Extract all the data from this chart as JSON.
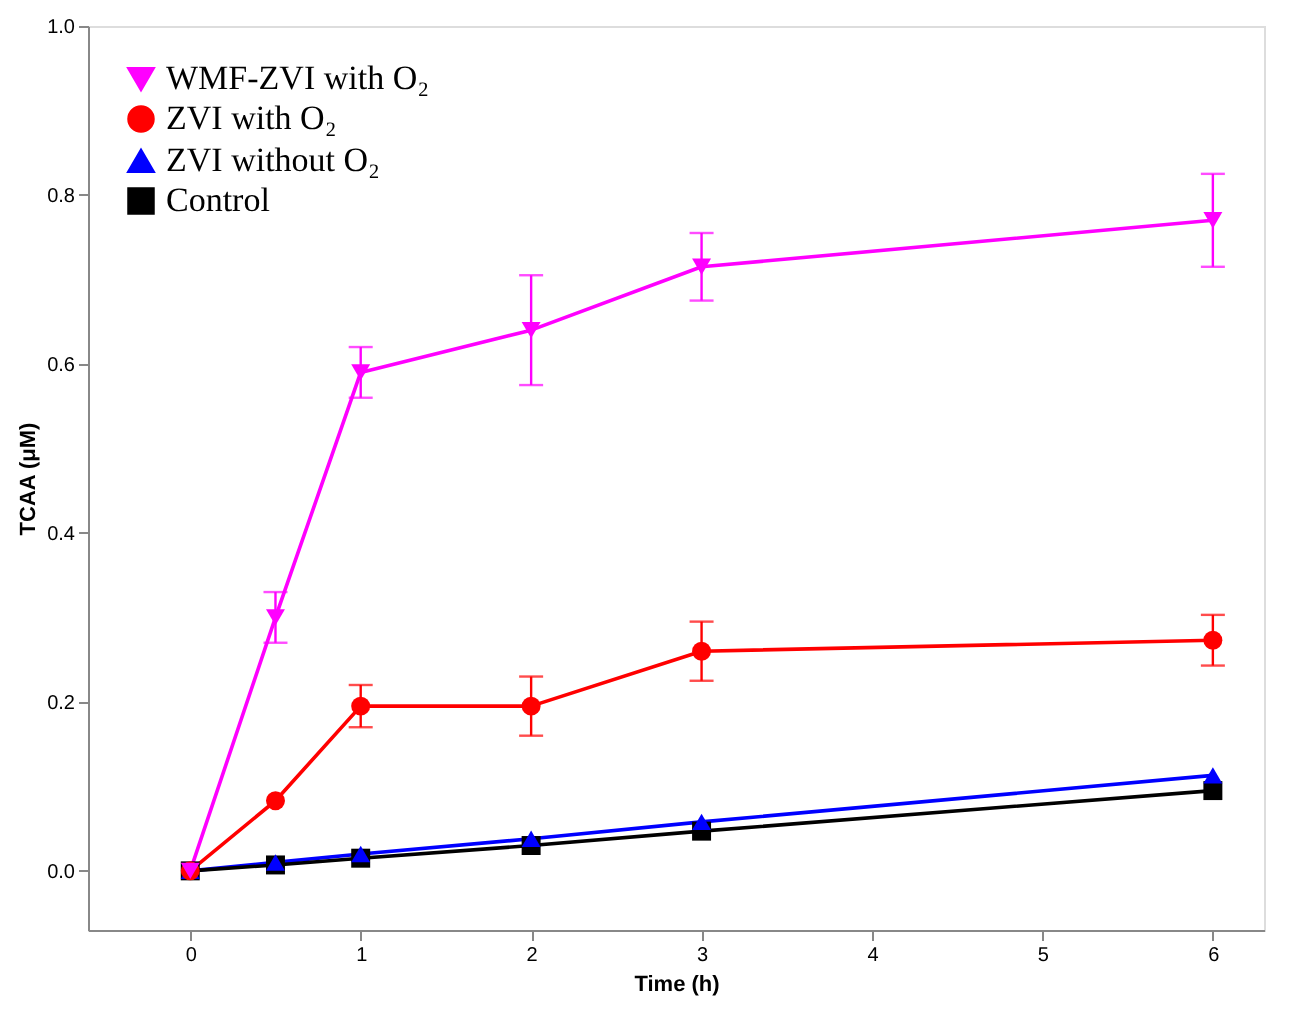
{
  "chart_data": {
    "type": "line",
    "xlabel": "Time (h)",
    "ylabel": "TCAA (μM)",
    "x": [
      0,
      0.5,
      1,
      2,
      3,
      6
    ],
    "xlim": [
      -0.6,
      6.3
    ],
    "xticks": [
      0,
      1,
      2,
      3,
      4,
      5,
      6
    ],
    "ylim": [
      -0.07,
      1.0
    ],
    "yticks": [
      {
        "value": 0,
        "label": "0.0"
      },
      {
        "value": 0.2,
        "label": "0.2"
      },
      {
        "value": 0.4,
        "label": "0.4"
      },
      {
        "value": 0.6,
        "label": "0.6"
      },
      {
        "value": 0.8,
        "label": "0.8"
      },
      {
        "value": 1,
        "label": "1.0"
      }
    ],
    "grid": false,
    "legend": "top left",
    "line_style": "solid",
    "series": [
      {
        "name": "WMF-ZVI with O₂",
        "color": "#ff00ff",
        "marker": "triangle-down",
        "values": [
          0,
          0.3,
          0.59,
          0.64,
          0.715,
          0.77
        ],
        "errors": [
          null,
          0.03,
          0.03,
          0.065,
          0.04,
          0.055
        ]
      },
      {
        "name": "ZVI with O₂",
        "color": "#ff0000",
        "marker": "circle",
        "values": [
          0,
          0.083,
          0.195,
          0.195,
          0.26,
          0.273
        ],
        "errors": [
          null,
          null,
          0.025,
          0.035,
          0.035,
          0.03
        ]
      },
      {
        "name": "ZVI without O₂",
        "color": "#0000ff",
        "marker": "triangle",
        "values": [
          0,
          0.01,
          0.02,
          0.038,
          0.058,
          0.113
        ]
      },
      {
        "name": "Control",
        "color": "#000000",
        "marker": "square",
        "values": [
          0,
          0.007,
          0.015,
          0.03,
          0.047,
          0.095
        ]
      }
    ]
  }
}
